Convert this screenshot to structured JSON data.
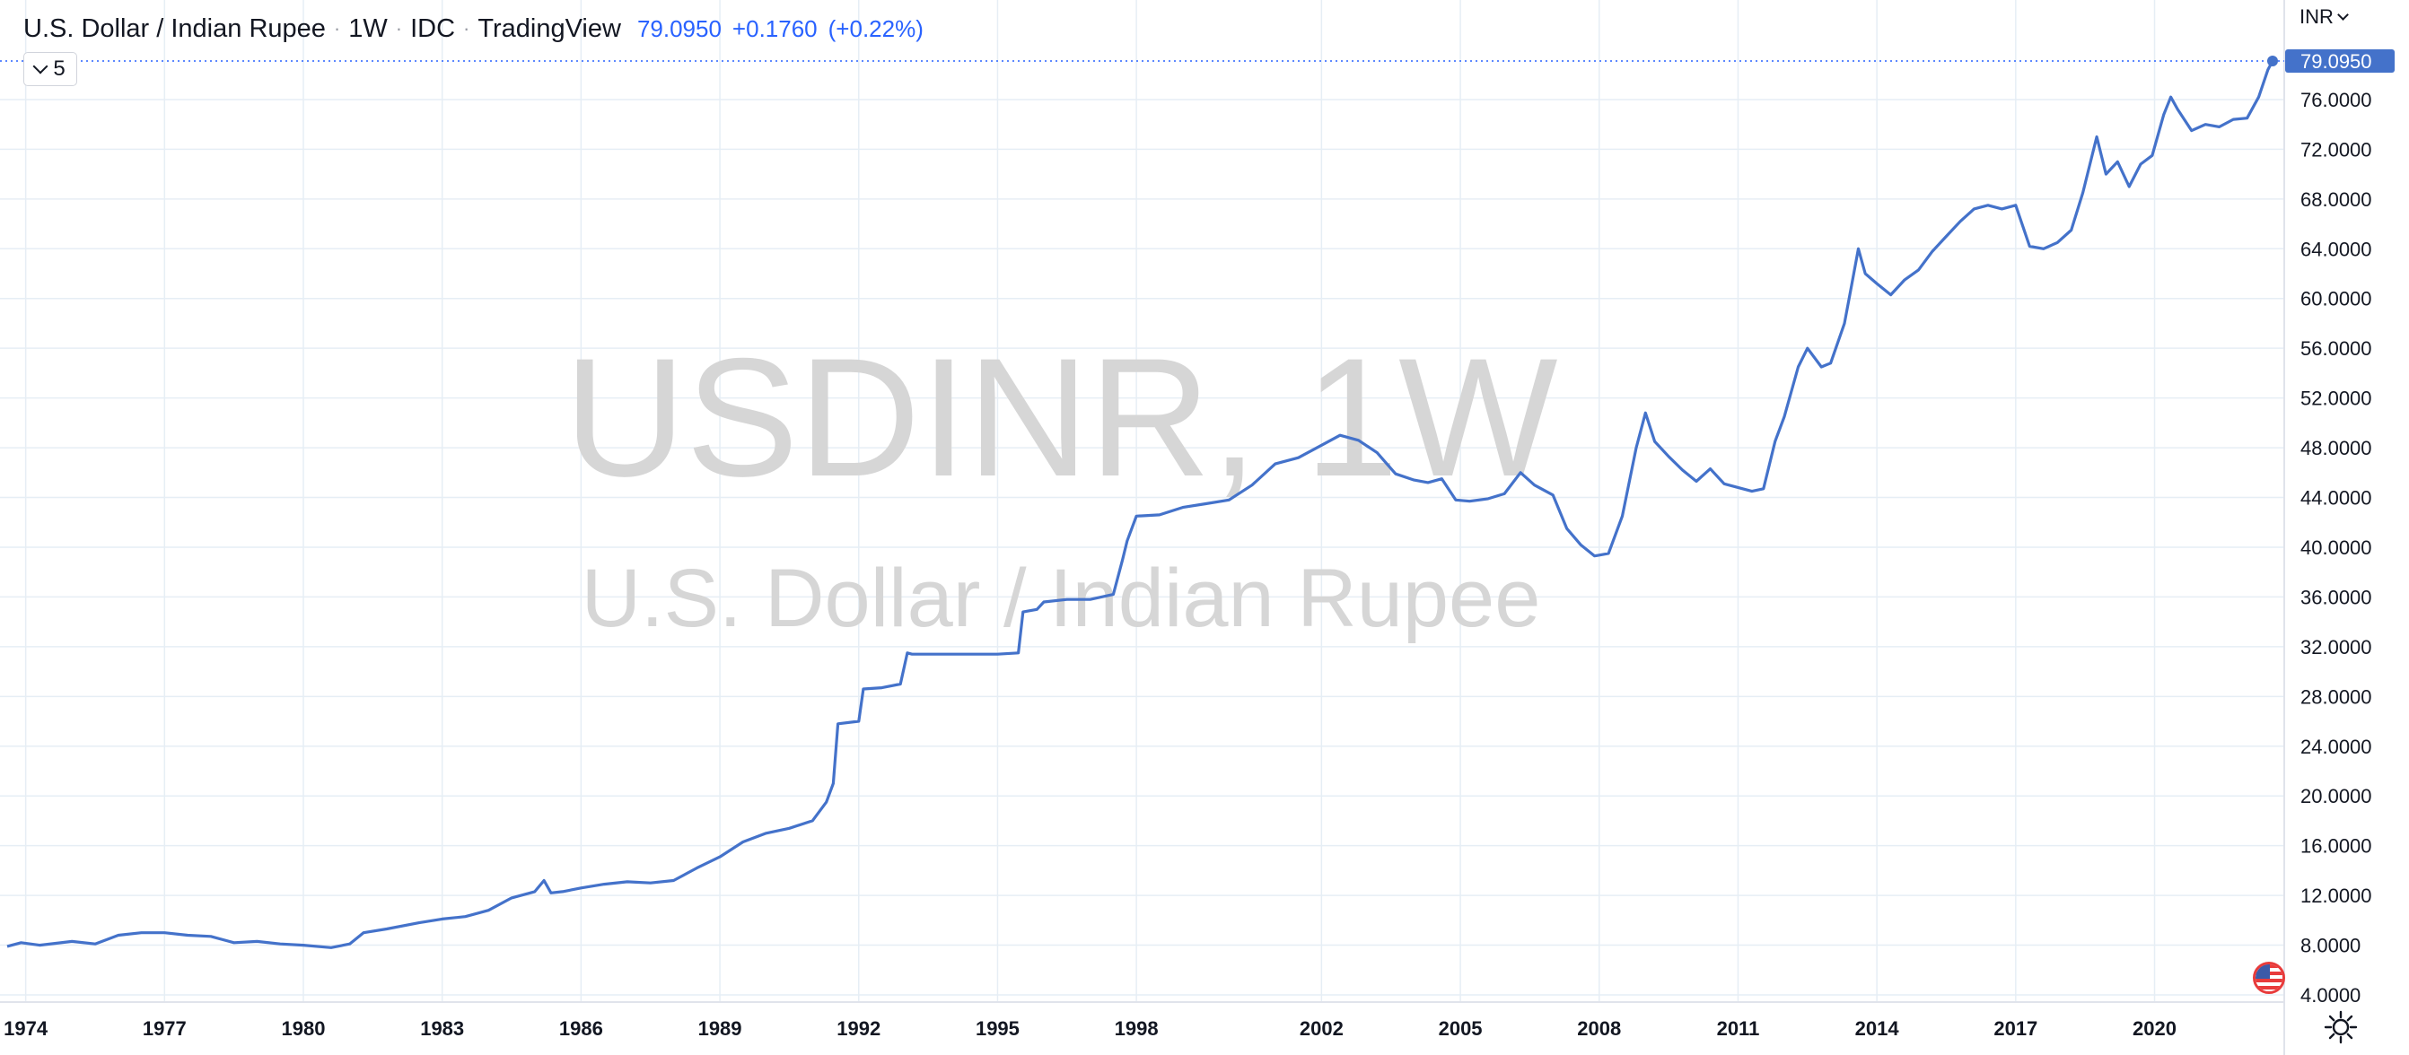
{
  "header": {
    "symbol_name": "U.S. Dollar / Indian Rupee",
    "interval": "1W",
    "exchange": "IDC",
    "provider": "TradingView",
    "last_price": "79.0950",
    "change": "+0.1760",
    "change_pct": "(+0.22%)",
    "separator": "·"
  },
  "indicators_toggle": {
    "count": "5"
  },
  "watermark": {
    "symbol": "USDINR, 1W",
    "description": "U.S. Dollar / Indian Rupee"
  },
  "price_scale": {
    "currency": "INR",
    "last_price_label": "79.0950",
    "ticks": [
      "76.0000",
      "72.0000",
      "68.0000",
      "64.0000",
      "60.0000",
      "56.0000",
      "52.0000",
      "48.0000",
      "44.0000",
      "40.0000",
      "36.0000",
      "32.0000",
      "28.0000",
      "24.0000",
      "20.0000",
      "16.0000",
      "12.0000",
      "8.0000",
      "4.0000"
    ]
  },
  "time_scale": {
    "ticks": [
      "1974",
      "1977",
      "1980",
      "1983",
      "1986",
      "1989",
      "1992",
      "1995",
      "1998",
      "2002",
      "2005",
      "2008",
      "2011",
      "2014",
      "2017",
      "2020"
    ]
  },
  "icons": {
    "flag": "us-flag-icon",
    "settings": "settings-gear-icon"
  },
  "colors": {
    "line": "#4472ca",
    "accent": "#2962ff",
    "grid": "#e6eef5",
    "watermark": "#d6d6d6"
  },
  "chart_data": {
    "type": "line",
    "title": "U.S. Dollar / Indian Rupee",
    "xlabel": "",
    "ylabel": "",
    "x_range": [
      1973.6,
      2022.55
    ],
    "ylim": [
      4,
      80
    ],
    "grid": true,
    "legend": "top-left",
    "series": [
      {
        "name": "USDINR",
        "x": [
          1973.6,
          1973.9,
          1974.3,
          1975.0,
          1975.5,
          1976.0,
          1976.5,
          1977.0,
          1977.5,
          1978.0,
          1978.5,
          1979.0,
          1979.5,
          1980.0,
          1980.6,
          1981.0,
          1981.3,
          1981.8,
          1982.5,
          1983.0,
          1983.5,
          1984.0,
          1984.5,
          1985.0,
          1985.2,
          1985.35,
          1985.6,
          1986.0,
          1986.5,
          1987.0,
          1987.5,
          1988.0,
          1988.5,
          1989.0,
          1989.5,
          1990.0,
          1990.5,
          1991.0,
          1991.3,
          1991.45,
          1991.55,
          1992.0,
          1992.1,
          1992.5,
          1992.9,
          1993.05,
          1993.15,
          1994.0,
          1995.0,
          1995.45,
          1995.55,
          1995.85,
          1996.0,
          1996.5,
          1997.0,
          1997.5,
          1997.7,
          1997.8,
          1998.0,
          1998.5,
          1999.0,
          1999.5,
          2000.0,
          2000.5,
          2001.0,
          2001.5,
          2002.0,
          2002.4,
          2002.8,
          2003.2,
          2003.6,
          2004.0,
          2004.3,
          2004.6,
          2004.9,
          2005.2,
          2005.6,
          2005.95,
          2006.3,
          2006.6,
          2007.0,
          2007.3,
          2007.6,
          2007.9,
          2008.2,
          2008.5,
          2008.8,
          2009.0,
          2009.2,
          2009.5,
          2009.8,
          2010.1,
          2010.4,
          2010.7,
          2011.0,
          2011.3,
          2011.55,
          2011.8,
          2012.0,
          2012.3,
          2012.5,
          2012.8,
          2013.0,
          2013.3,
          2013.45,
          2013.6,
          2013.75,
          2014.0,
          2014.3,
          2014.6,
          2014.9,
          2015.2,
          2015.5,
          2015.8,
          2016.1,
          2016.4,
          2016.7,
          2017.0,
          2017.3,
          2017.6,
          2017.9,
          2018.2,
          2018.45,
          2018.75,
          2018.95,
          2019.2,
          2019.45,
          2019.7,
          2019.95,
          2020.2,
          2020.35,
          2020.5,
          2020.8,
          2021.1,
          2021.4,
          2021.7,
          2022.0,
          2022.25,
          2022.45,
          2022.55
        ],
        "values": [
          7.9,
          8.2,
          8.0,
          8.3,
          8.1,
          8.8,
          9.0,
          9.0,
          8.8,
          8.7,
          8.2,
          8.3,
          8.1,
          8.0,
          7.8,
          8.1,
          9.0,
          9.3,
          9.8,
          10.1,
          10.3,
          10.8,
          11.8,
          12.3,
          13.2,
          12.2,
          12.3,
          12.6,
          12.9,
          13.1,
          13.0,
          13.2,
          14.2,
          15.1,
          16.3,
          17.0,
          17.4,
          18.0,
          19.5,
          21.0,
          25.8,
          26.0,
          28.6,
          28.7,
          29.0,
          31.5,
          31.4,
          31.4,
          31.4,
          31.5,
          34.8,
          35.0,
          35.6,
          35.8,
          35.8,
          36.2,
          39.0,
          40.5,
          42.5,
          42.6,
          43.2,
          43.5,
          43.8,
          45.0,
          46.7,
          47.2,
          48.2,
          49.0,
          48.6,
          47.6,
          45.9,
          45.4,
          45.2,
          45.5,
          43.8,
          43.7,
          43.9,
          44.3,
          46.0,
          45.0,
          44.2,
          41.5,
          40.2,
          39.3,
          39.5,
          42.5,
          48.0,
          50.8,
          48.5,
          47.3,
          46.2,
          45.3,
          46.3,
          45.1,
          44.8,
          44.5,
          44.7,
          48.5,
          50.5,
          54.5,
          56.0,
          54.5,
          54.8,
          58.0,
          61.0,
          64.0,
          62.0,
          61.2,
          60.3,
          61.5,
          62.3,
          63.8,
          65.0,
          66.2,
          67.2,
          67.5,
          67.2,
          67.5,
          64.2,
          64.0,
          64.5,
          65.5,
          68.5,
          73.0,
          70.0,
          71.0,
          69.0,
          70.8,
          71.5,
          74.8,
          76.2,
          75.2,
          73.5,
          74.0,
          73.8,
          74.4,
          74.5,
          76.2,
          78.4,
          79.1
        ]
      }
    ]
  }
}
